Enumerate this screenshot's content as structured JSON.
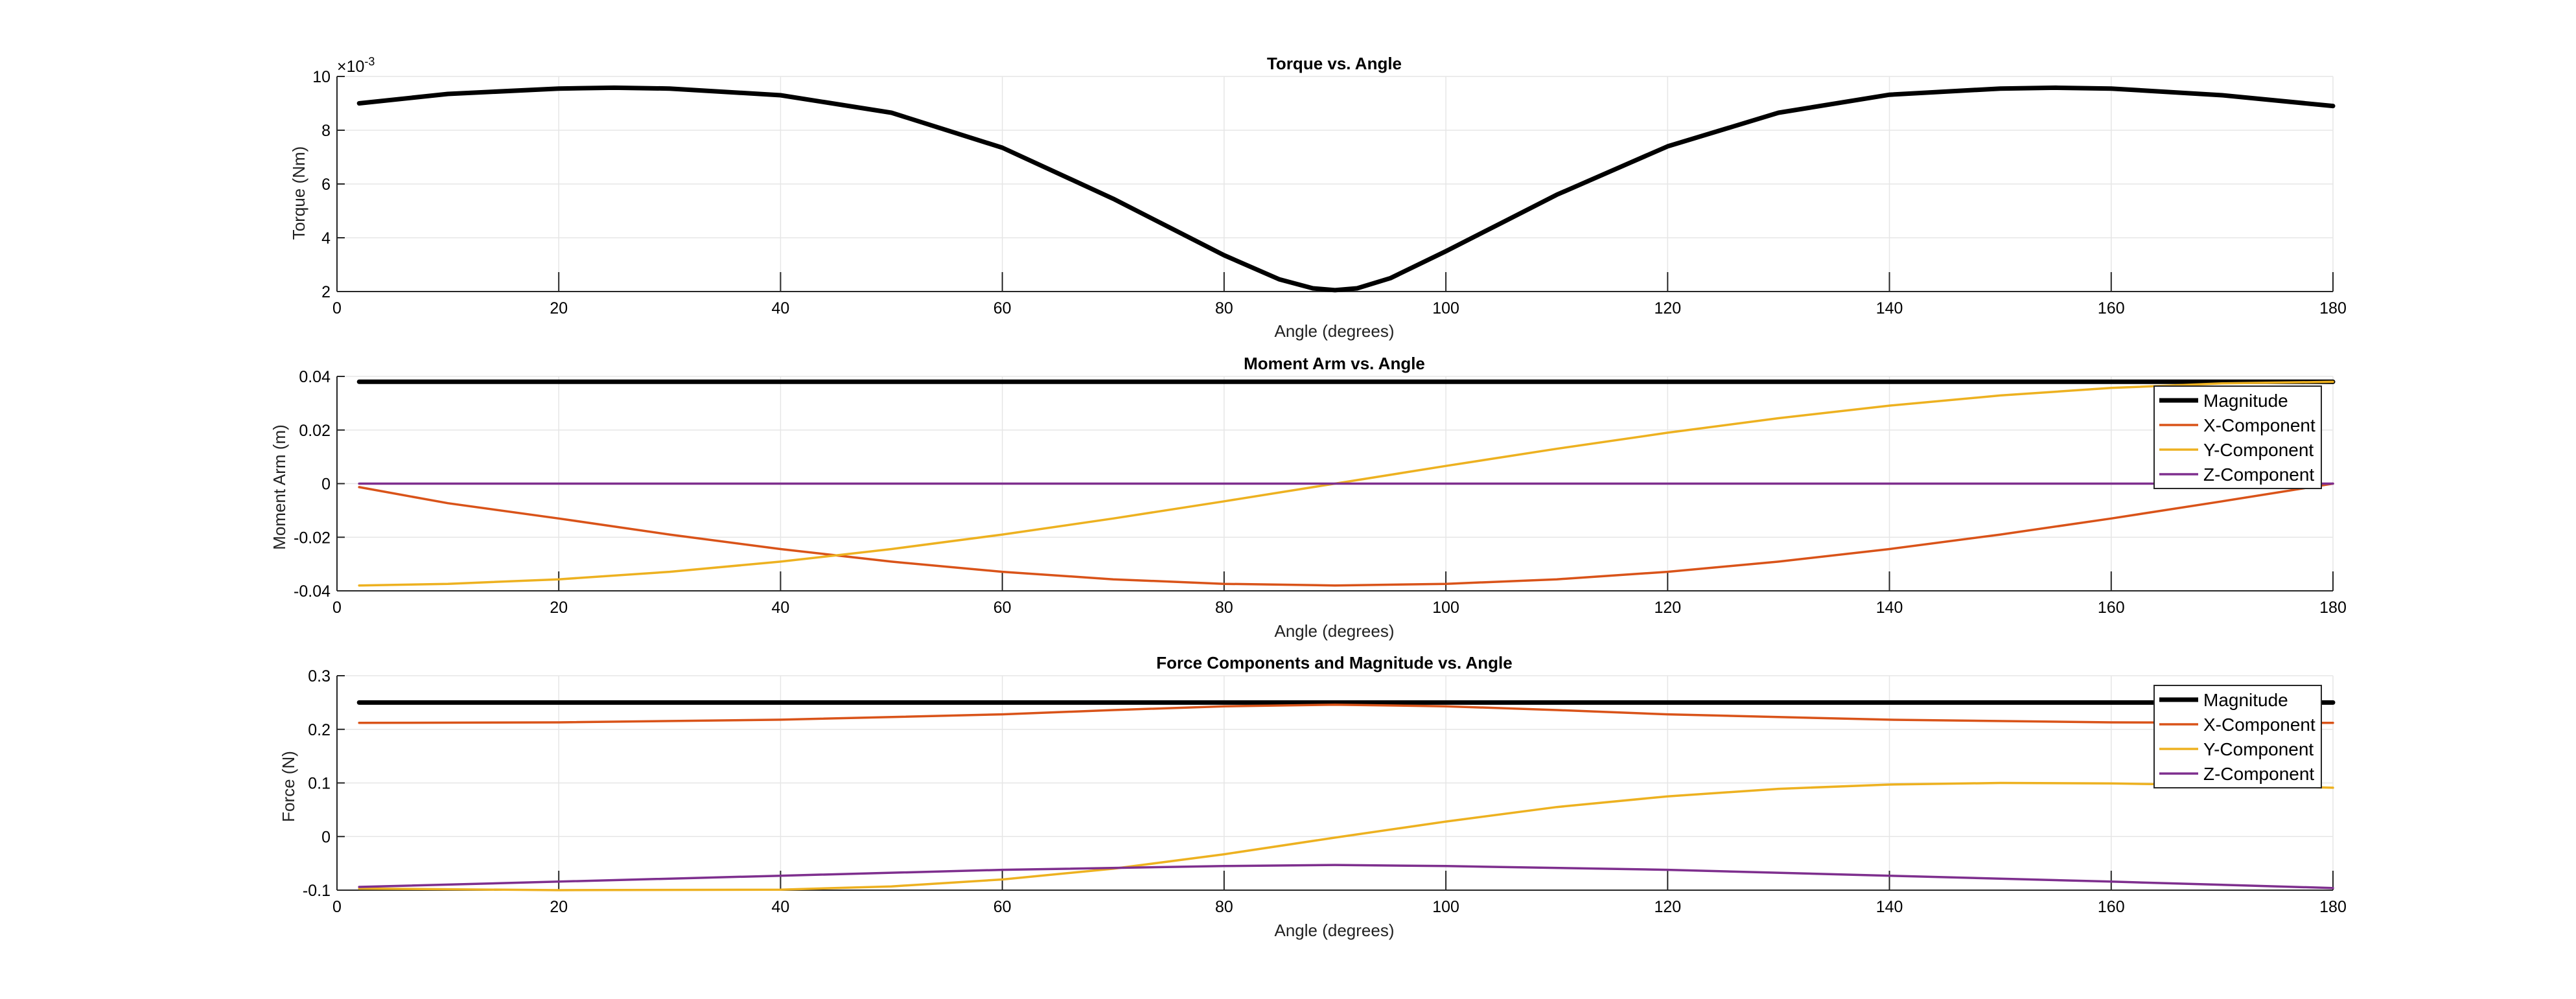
{
  "chart_data": [
    {
      "type": "line",
      "title": "Torque vs. Angle",
      "xlabel": "Angle (degrees)",
      "ylabel": "Torque (Nm)",
      "y_exponent_label": "×10",
      "y_exponent_power": "-3",
      "xlim": [
        0,
        180
      ],
      "ylim": [
        2,
        10
      ],
      "x_ticks": [
        "0",
        "20",
        "40",
        "60",
        "80",
        "100",
        "120",
        "140",
        "160",
        "180"
      ],
      "y_ticks": [
        "2",
        "4",
        "6",
        "8",
        "10"
      ],
      "grid": true,
      "legend": null,
      "series": [
        {
          "color": "#000000",
          "x": [
            2,
            10,
            20,
            25,
            30,
            40,
            50,
            60,
            70,
            75,
            80,
            85,
            88,
            90,
            92,
            95,
            100,
            105,
            110,
            120,
            130,
            140,
            150,
            155,
            160,
            170,
            180
          ],
          "y": [
            9.0,
            9.35,
            9.55,
            9.58,
            9.55,
            9.3,
            8.65,
            7.35,
            5.45,
            4.4,
            3.35,
            2.45,
            2.12,
            2.05,
            2.12,
            2.5,
            3.5,
            4.55,
            5.6,
            7.4,
            8.65,
            9.32,
            9.55,
            9.58,
            9.55,
            9.3,
            8.9
          ]
        }
      ]
    },
    {
      "type": "line",
      "title": "Moment Arm vs. Angle",
      "xlabel": "Angle (degrees)",
      "ylabel": "Moment Arm (m)",
      "xlim": [
        0,
        180
      ],
      "ylim": [
        -0.04,
        0.04
      ],
      "x_ticks": [
        "0",
        "20",
        "40",
        "60",
        "80",
        "100",
        "120",
        "140",
        "160",
        "180"
      ],
      "y_ticks": [
        "-0.04",
        "-0.02",
        "0",
        "0.02",
        "0.04"
      ],
      "grid": true,
      "legend": "top-right",
      "series": [
        {
          "name": "Magnitude",
          "color": "#000000",
          "x": [
            2,
            180
          ],
          "y": [
            0.038,
            0.038
          ]
        },
        {
          "name": "X-Component",
          "color": "#D95319",
          "x": [
            2,
            10,
            20,
            30,
            40,
            50,
            60,
            70,
            80,
            90,
            100,
            110,
            120,
            130,
            140,
            150,
            160,
            170,
            180
          ],
          "y": [
            -0.0013,
            -0.0073,
            -0.013,
            -0.019,
            -0.0244,
            -0.0291,
            -0.0329,
            -0.0357,
            -0.0374,
            -0.038,
            -0.0374,
            -0.0357,
            -0.0329,
            -0.0291,
            -0.0244,
            -0.019,
            -0.013,
            -0.0066,
            0.0
          ]
        },
        {
          "name": "Y-Component",
          "color": "#EDB120",
          "x": [
            2,
            10,
            20,
            30,
            40,
            50,
            60,
            70,
            80,
            90,
            100,
            110,
            120,
            130,
            140,
            150,
            160,
            170,
            180
          ],
          "y": [
            -0.038,
            -0.0374,
            -0.0357,
            -0.0329,
            -0.0291,
            -0.0244,
            -0.019,
            -0.013,
            -0.0066,
            0.0,
            0.0066,
            0.013,
            0.019,
            0.0244,
            0.0291,
            0.0329,
            0.0357,
            0.0374,
            0.038
          ]
        },
        {
          "name": "Z-Component",
          "color": "#7E2F8E",
          "x": [
            2,
            180
          ],
          "y": [
            0.0,
            0.0
          ]
        }
      ]
    },
    {
      "type": "line",
      "title": "Force Components and Magnitude vs. Angle",
      "xlabel": "Angle (degrees)",
      "ylabel": "Force (N)",
      "xlim": [
        0,
        180
      ],
      "ylim": [
        -0.1,
        0.3
      ],
      "x_ticks": [
        "0",
        "20",
        "40",
        "60",
        "80",
        "100",
        "120",
        "140",
        "160",
        "180"
      ],
      "y_ticks": [
        "-0.1",
        "0",
        "0.1",
        "0.2",
        "0.3"
      ],
      "grid": true,
      "legend": "top-right",
      "series": [
        {
          "name": "Magnitude",
          "color": "#000000",
          "x": [
            2,
            180
          ],
          "y": [
            0.25,
            0.25
          ]
        },
        {
          "name": "X-Component",
          "color": "#D95319",
          "x": [
            2,
            20,
            40,
            60,
            70,
            80,
            90,
            100,
            110,
            120,
            140,
            160,
            180
          ],
          "y": [
            0.212,
            0.213,
            0.218,
            0.228,
            0.236,
            0.243,
            0.246,
            0.243,
            0.236,
            0.228,
            0.218,
            0.213,
            0.212
          ]
        },
        {
          "name": "Y-Component",
          "color": "#EDB120",
          "x": [
            2,
            20,
            40,
            50,
            60,
            70,
            80,
            90,
            100,
            110,
            120,
            130,
            140,
            150,
            160,
            170,
            180
          ],
          "y": [
            -0.097,
            -0.1,
            -0.099,
            -0.093,
            -0.08,
            -0.06,
            -0.033,
            -0.002,
            0.028,
            0.055,
            0.075,
            0.089,
            0.097,
            0.1,
            0.099,
            0.096,
            0.091
          ]
        },
        {
          "name": "Z-Component",
          "color": "#7E2F8E",
          "x": [
            2,
            20,
            40,
            60,
            80,
            90,
            100,
            120,
            140,
            160,
            180
          ],
          "y": [
            -0.094,
            -0.084,
            -0.073,
            -0.062,
            -0.055,
            -0.053,
            -0.055,
            -0.062,
            -0.073,
            -0.084,
            -0.096
          ]
        }
      ]
    }
  ]
}
